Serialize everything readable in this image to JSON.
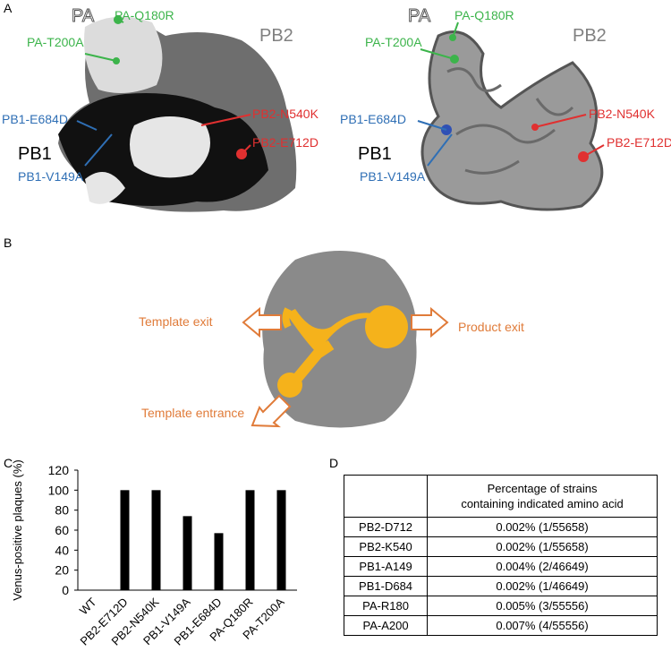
{
  "panel_labels": [
    "A",
    "B",
    "C",
    "D"
  ],
  "panel_a": {
    "labels": [
      {
        "text": "PA",
        "color": "#ffffff"
      },
      {
        "text": "PA-Q180R",
        "color": "#3cb44b"
      },
      {
        "text": "PB2",
        "color": "#808080"
      },
      {
        "text": "PA-T200A",
        "color": "#3cb44b"
      },
      {
        "text": "PB2-N540K",
        "color": "#e03030"
      },
      {
        "text": "PB1-E684D",
        "color": "#2f6fb5"
      },
      {
        "text": "PB1",
        "color": "#000000"
      },
      {
        "text": "PB2-E712D",
        "color": "#e03030"
      },
      {
        "text": "PB1-V149A",
        "color": "#2f6fb5"
      }
    ]
  },
  "panel_b": {
    "labels": [
      "Template exit",
      "Product exit",
      "Template entrance"
    ]
  },
  "chart_data": {
    "type": "bar",
    "y_label": "Venus-positive plaques (%)",
    "categories": [
      "WT",
      "PB2-E712D",
      "PB2-N540K",
      "PB1-V149A",
      "PB1-E684D",
      "PA-Q180R",
      "PA-T200A"
    ],
    "values": [
      0,
      100,
      100,
      74,
      57,
      100,
      100
    ],
    "color": "#000000",
    "ylim": [
      0,
      120
    ],
    "yticks": [
      0,
      20,
      40,
      60,
      80,
      100,
      120
    ],
    "grid": false
  },
  "table": {
    "header": [
      "Percentage of strains",
      "containing indicated amino acid"
    ],
    "rows": [
      [
        "PB2-D712",
        "0.002% (1/55658)"
      ],
      [
        "PB2-K540",
        "0.002% (1/55658)"
      ],
      [
        "PB1-A149",
        "0.004% (2/46649)"
      ],
      [
        "PB1-D684",
        "0.002% (1/46649)"
      ],
      [
        "PA-R180",
        "0.005% (3/55556)"
      ],
      [
        "PA-A200",
        "0.007% (4/55556)"
      ]
    ]
  }
}
